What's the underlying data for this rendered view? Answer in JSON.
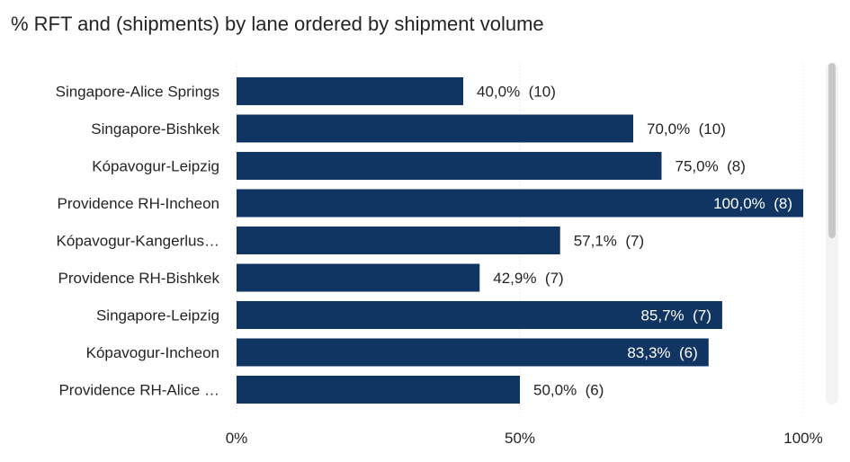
{
  "title": "% RFT and (shipments) by lane ordered by shipment volume",
  "colors": {
    "bar": "#113563",
    "label_outside": "#252423",
    "label_inside": "#ffffff",
    "category_text": "#252423",
    "grid": "#dcdcdc"
  },
  "chart_data": {
    "type": "bar",
    "orientation": "horizontal",
    "title": "% RFT and (shipments) by lane ordered by shipment volume",
    "categories": [
      "Singapore-Alice Springs",
      "Singapore-Bishkek",
      "Kópavogur-Leipzig",
      "Providence RH-Incheon",
      "Kópavogur-Kangerlus…",
      "Providence RH-Bishkek",
      "Singapore-Leipzig",
      "Kópavogur-Incheon",
      "Providence RH-Alice …"
    ],
    "values": [
      40.0,
      70.0,
      75.0,
      100.0,
      57.1,
      42.9,
      85.7,
      83.3,
      50.0
    ],
    "shipments": [
      10,
      10,
      8,
      8,
      7,
      7,
      7,
      6,
      6
    ],
    "data_labels": [
      "40,0%  (10)",
      "70,0%  (10)",
      "75,0%  (8)",
      "100,0%  (8)",
      "57,1%  (7)",
      "42,9%  (7)",
      "85,7%  (7)",
      "83,3%  (6)",
      "50,0%  (6)"
    ],
    "xlim": [
      0,
      100
    ],
    "x_ticks": [
      "0%",
      "50%",
      "100%"
    ],
    "x_tick_values": [
      0,
      50,
      100
    ],
    "grid": true,
    "xlabel": "",
    "ylabel": ""
  }
}
